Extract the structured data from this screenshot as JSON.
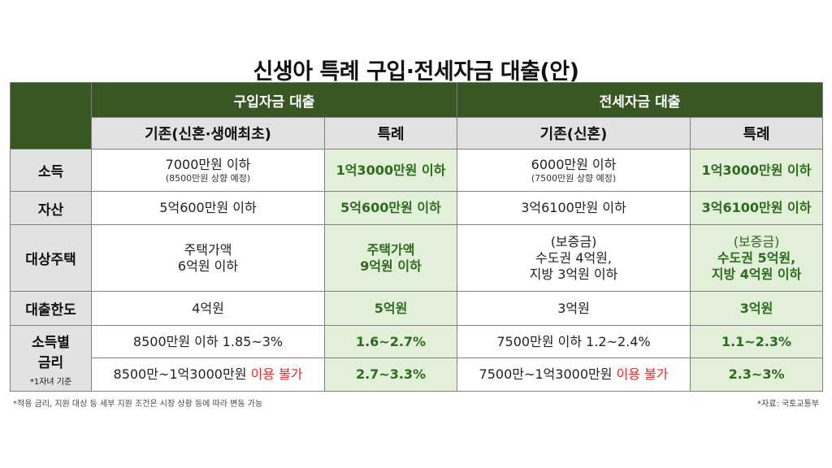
{
  "title": "신생아 특례 구입·전세자금 대출(안)",
  "headers": {
    "purchase": "구입자금 대출",
    "jeonse": "전세자금 대출",
    "purchase_base": "기존(신혼·생애최초)",
    "purchase_special": "특례",
    "jeonse_base": "기존(신혼)",
    "jeonse_special": "특례"
  },
  "rows": {
    "income": {
      "label": "소득",
      "purchase_base": "7000만원 이하",
      "purchase_base_note": "(8500만원 상향 예정)",
      "purchase_special": "1억3000만원 이하",
      "jeonse_base": "6000만원 이하",
      "jeonse_base_note": "(7500만원 상향 예정)",
      "jeonse_special": "1억3000만원 이하"
    },
    "asset": {
      "label": "자산",
      "purchase_base": "5억600만원 이하",
      "purchase_special": "5억600만원 이하",
      "jeonse_base": "3억6100만원 이하",
      "jeonse_special": "3억6100만원 이하"
    },
    "housing": {
      "label": "대상주택",
      "purchase_base_1": "주택가액",
      "purchase_base_2": "6억원 이하",
      "purchase_special_1": "주택가액",
      "purchase_special_2": "9억원 이하",
      "jeonse_base_1": "(보증금)",
      "jeonse_base_2": "수도권 4억원,",
      "jeonse_base_3": "지방 3억원 이하",
      "jeonse_special_1": "(보증금)",
      "jeonse_special_2": "수도권 5억원,",
      "jeonse_special_3": "지방 4억원 이하"
    },
    "limit": {
      "label": "대출한도",
      "purchase_base": "4억원",
      "purchase_special": "5억원",
      "jeonse_base": "3억원",
      "jeonse_special": "3억원"
    },
    "rate": {
      "label_1": "소득별",
      "label_2": "금리",
      "label_note": "*1자녀 기준",
      "r1_purchase_base": "8500만원 이하 1.85~3%",
      "r1_purchase_special": "1.6~2.7%",
      "r1_jeonse_base": "7500만원 이하 1.2~2.4%",
      "r1_jeonse_special": "1.1~2.3%",
      "r2_purchase_base": "8500만~1억3000만원",
      "r2_purchase_base_red": "이용 불가",
      "r2_purchase_special": "2.7~3.3%",
      "r2_jeonse_base": "7500만~1억3000만원",
      "r2_jeonse_base_red": "이용 불가",
      "r2_jeonse_special": "2.3~3%"
    }
  },
  "footnote": "*적용 금리, 지원 대상 등 세부 지원 조건은 시장 상황 등에 따라 변동 가능",
  "source": "*자료: 국토교통부",
  "colors": {
    "header_green": "#385723",
    "special_bg": "#e2efd9",
    "special_text": "#2e6b1f",
    "warning_red": "#e02a2a"
  }
}
